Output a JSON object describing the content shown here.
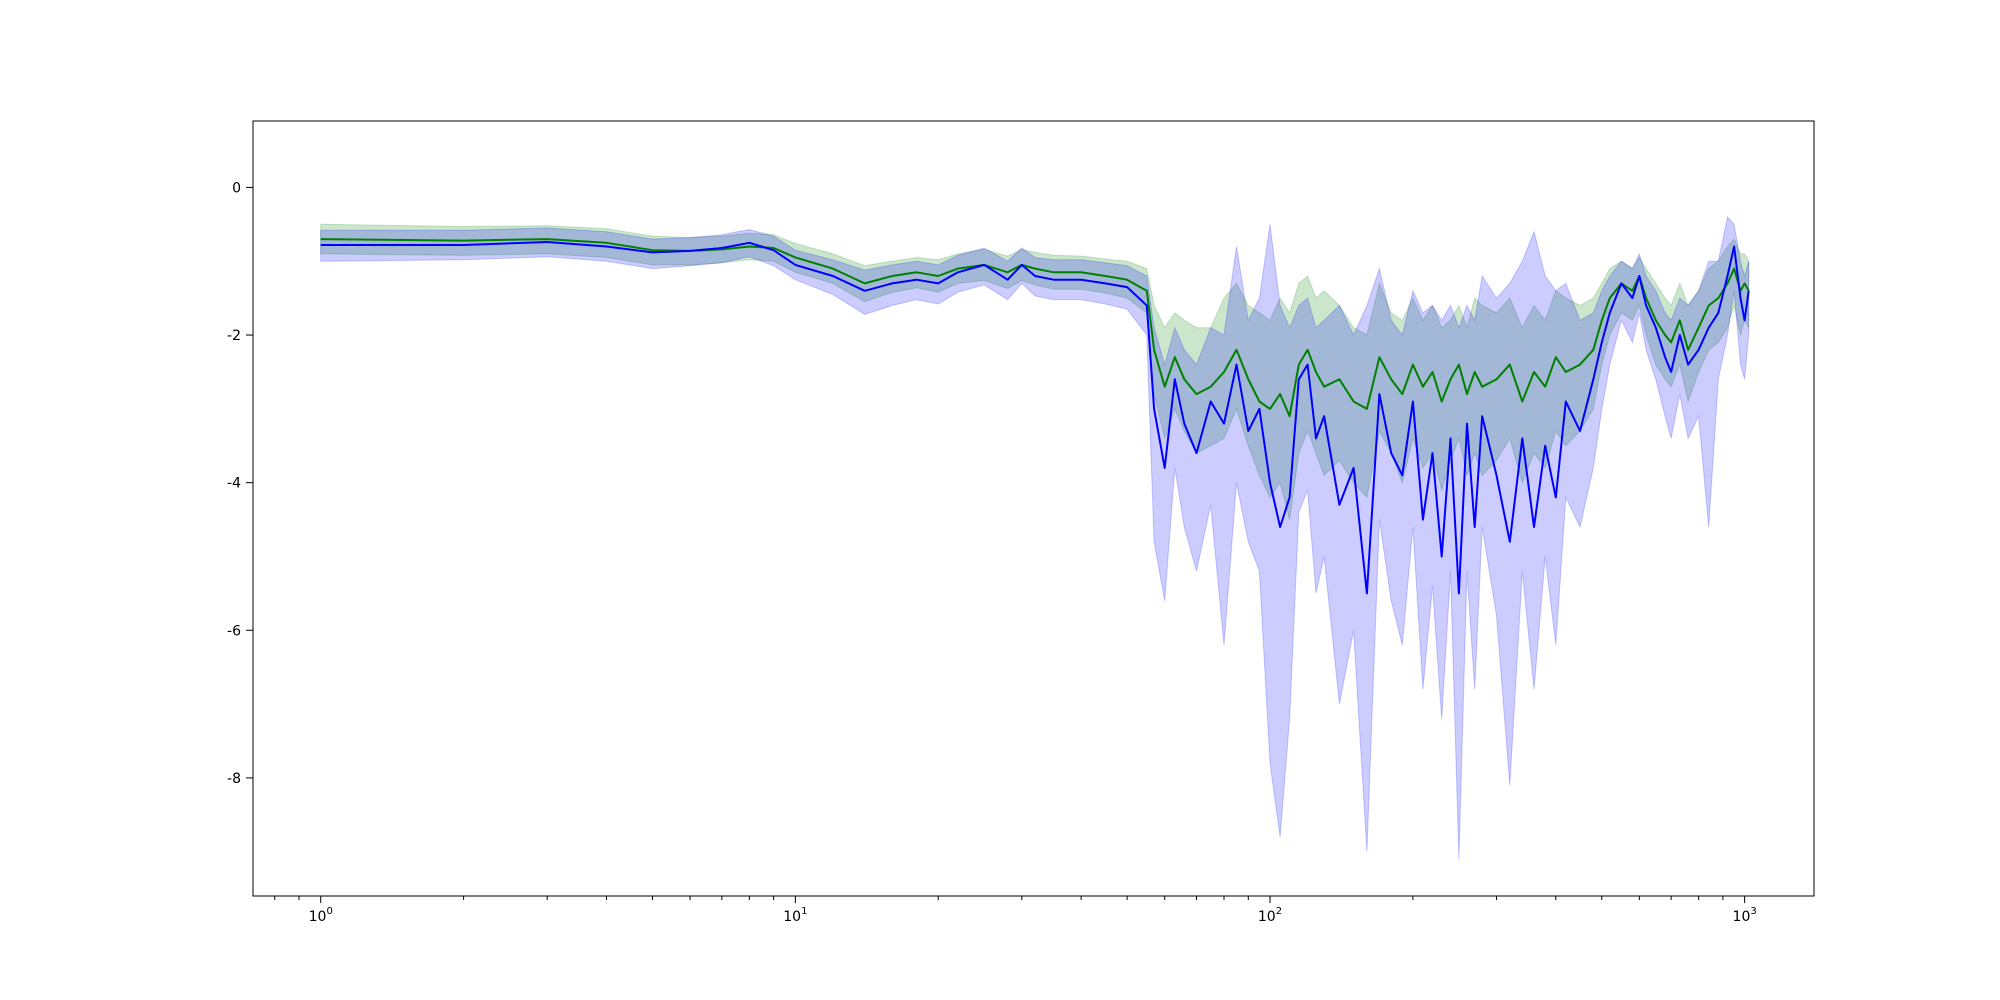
{
  "chart_data": {
    "type": "line",
    "title": "",
    "xlabel": "",
    "ylabel": "",
    "x_scale": "log",
    "xlim": [
      0.72,
      1400
    ],
    "ylim": [
      -9.6,
      0.9
    ],
    "grid": false,
    "legend": "none",
    "x_ticks": [
      {
        "value": 1,
        "base": "10",
        "exp": "0"
      },
      {
        "value": 10,
        "base": "10",
        "exp": "1"
      },
      {
        "value": 100,
        "base": "10",
        "exp": "2"
      },
      {
        "value": 1000,
        "base": "10",
        "exp": "3"
      }
    ],
    "y_ticks": [
      {
        "value": 0,
        "label": "0"
      },
      {
        "value": -2,
        "label": "-2"
      },
      {
        "value": -4,
        "label": "-4"
      },
      {
        "value": -6,
        "label": "-6"
      },
      {
        "value": -8,
        "label": "-8"
      }
    ],
    "series": [
      {
        "color": "#008000",
        "band_color": "#008000",
        "band_opacity": 0.2,
        "x": [
          1,
          2,
          3,
          4,
          5,
          6,
          7,
          8,
          9,
          10,
          12,
          14,
          16,
          18,
          20,
          22,
          25,
          28,
          30,
          32,
          35,
          40,
          45,
          50,
          55,
          57,
          60,
          63,
          66,
          70,
          75,
          80,
          85,
          90,
          95,
          100,
          105,
          110,
          115,
          120,
          125,
          130,
          140,
          150,
          160,
          170,
          180,
          190,
          200,
          210,
          220,
          230,
          240,
          250,
          260,
          270,
          280,
          300,
          320,
          340,
          360,
          380,
          400,
          420,
          450,
          480,
          500,
          520,
          550,
          580,
          600,
          620,
          650,
          680,
          700,
          730,
          760,
          800,
          840,
          880,
          920,
          950,
          980,
          1000,
          1020
        ],
        "y": [
          -0.7,
          -0.72,
          -0.7,
          -0.75,
          -0.85,
          -0.86,
          -0.84,
          -0.8,
          -0.82,
          -0.95,
          -1.1,
          -1.3,
          -1.2,
          -1.15,
          -1.2,
          -1.1,
          -1.05,
          -1.15,
          -1.05,
          -1.1,
          -1.15,
          -1.15,
          -1.2,
          -1.25,
          -1.4,
          -2.2,
          -2.7,
          -2.3,
          -2.6,
          -2.8,
          -2.7,
          -2.5,
          -2.2,
          -2.6,
          -2.9,
          -3.0,
          -2.8,
          -3.1,
          -2.4,
          -2.2,
          -2.5,
          -2.7,
          -2.6,
          -2.9,
          -3.0,
          -2.3,
          -2.6,
          -2.8,
          -2.4,
          -2.7,
          -2.5,
          -2.9,
          -2.6,
          -2.4,
          -2.8,
          -2.5,
          -2.7,
          -2.6,
          -2.4,
          -2.9,
          -2.5,
          -2.7,
          -2.3,
          -2.5,
          -2.4,
          -2.2,
          -1.8,
          -1.5,
          -1.3,
          -1.4,
          -1.2,
          -1.5,
          -1.8,
          -2.0,
          -2.1,
          -1.8,
          -2.2,
          -1.9,
          -1.6,
          -1.5,
          -1.3,
          -1.1,
          -1.4,
          -1.3,
          -1.4
        ],
        "upper": [
          -0.5,
          -0.53,
          -0.52,
          -0.56,
          -0.66,
          -0.68,
          -0.66,
          -0.62,
          -0.64,
          -0.76,
          -0.9,
          -1.06,
          -1.0,
          -0.95,
          -0.98,
          -0.9,
          -0.84,
          -0.93,
          -0.84,
          -0.88,
          -0.92,
          -0.93,
          -0.97,
          -1.0,
          -1.1,
          -1.6,
          -1.9,
          -1.7,
          -1.8,
          -1.9,
          -1.9,
          -1.5,
          -1.3,
          -1.6,
          -1.7,
          -1.8,
          -1.5,
          -1.7,
          -1.3,
          -1.2,
          -1.5,
          -1.4,
          -1.6,
          -1.9,
          -2.0,
          -1.3,
          -1.7,
          -1.8,
          -1.5,
          -1.8,
          -1.6,
          -1.9,
          -1.8,
          -1.6,
          -1.9,
          -1.5,
          -1.6,
          -1.7,
          -1.5,
          -1.9,
          -1.6,
          -1.8,
          -1.4,
          -1.5,
          -1.6,
          -1.5,
          -1.3,
          -1.1,
          -1.0,
          -1.1,
          -0.95,
          -1.1,
          -1.3,
          -1.5,
          -1.6,
          -1.3,
          -1.6,
          -1.4,
          -1.1,
          -1.0,
          -0.8,
          -0.7,
          -0.9,
          -0.9,
          -1.0
        ],
        "lower": [
          -0.9,
          -0.92,
          -0.9,
          -0.95,
          -1.05,
          -1.05,
          -1.02,
          -0.98,
          -1.0,
          -1.15,
          -1.3,
          -1.55,
          -1.42,
          -1.36,
          -1.42,
          -1.3,
          -1.26,
          -1.37,
          -1.26,
          -1.32,
          -1.38,
          -1.38,
          -1.43,
          -1.5,
          -1.7,
          -2.8,
          -3.4,
          -3.0,
          -3.3,
          -3.6,
          -3.5,
          -3.4,
          -3.0,
          -3.5,
          -3.9,
          -4.2,
          -4.0,
          -4.5,
          -3.6,
          -3.3,
          -3.6,
          -3.9,
          -3.7,
          -4.0,
          -4.2,
          -3.3,
          -3.6,
          -4.0,
          -3.4,
          -3.8,
          -3.6,
          -4.1,
          -3.7,
          -3.4,
          -3.9,
          -3.6,
          -3.9,
          -3.7,
          -3.4,
          -4.0,
          -3.6,
          -3.8,
          -3.3,
          -3.5,
          -3.3,
          -3.0,
          -2.4,
          -2.0,
          -1.7,
          -1.8,
          -1.6,
          -2.0,
          -2.4,
          -2.6,
          -2.7,
          -2.4,
          -2.9,
          -2.5,
          -2.2,
          -2.1,
          -1.9,
          -1.6,
          -2.0,
          -1.8,
          -1.9
        ]
      },
      {
        "color": "#0000ff",
        "band_color": "#0000ff",
        "band_opacity": 0.2,
        "x": [
          1,
          2,
          3,
          4,
          5,
          6,
          7,
          8,
          9,
          10,
          12,
          14,
          16,
          18,
          20,
          22,
          25,
          28,
          30,
          32,
          35,
          40,
          45,
          50,
          55,
          57,
          60,
          63,
          66,
          70,
          75,
          80,
          85,
          90,
          95,
          100,
          105,
          110,
          115,
          120,
          125,
          130,
          140,
          150,
          160,
          170,
          180,
          190,
          200,
          210,
          220,
          230,
          240,
          250,
          260,
          270,
          280,
          300,
          320,
          340,
          360,
          380,
          400,
          420,
          450,
          480,
          500,
          520,
          550,
          580,
          600,
          620,
          650,
          680,
          700,
          730,
          760,
          800,
          840,
          880,
          920,
          950,
          980,
          1000,
          1020
        ],
        "y": [
          -0.78,
          -0.78,
          -0.74,
          -0.8,
          -0.88,
          -0.86,
          -0.82,
          -0.75,
          -0.85,
          -1.05,
          -1.2,
          -1.4,
          -1.3,
          -1.25,
          -1.3,
          -1.15,
          -1.05,
          -1.25,
          -1.05,
          -1.2,
          -1.25,
          -1.25,
          -1.3,
          -1.35,
          -1.6,
          -3.0,
          -3.8,
          -2.6,
          -3.2,
          -3.6,
          -2.9,
          -3.2,
          -2.4,
          -3.3,
          -3.0,
          -4.0,
          -4.6,
          -4.2,
          -2.6,
          -2.4,
          -3.4,
          -3.1,
          -4.3,
          -3.8,
          -5.5,
          -2.8,
          -3.6,
          -3.9,
          -2.9,
          -4.5,
          -3.6,
          -5.0,
          -3.4,
          -5.5,
          -3.2,
          -4.6,
          -3.1,
          -3.9,
          -4.8,
          -3.4,
          -4.6,
          -3.5,
          -4.2,
          -2.9,
          -3.3,
          -2.6,
          -2.1,
          -1.7,
          -1.3,
          -1.5,
          -1.2,
          -1.6,
          -1.9,
          -2.3,
          -2.5,
          -2.0,
          -2.4,
          -2.2,
          -1.9,
          -1.7,
          -1.2,
          -0.8,
          -1.5,
          -1.8,
          -1.4
        ],
        "upper": [
          -0.58,
          -0.58,
          -0.55,
          -0.6,
          -0.7,
          -0.68,
          -0.64,
          -0.57,
          -0.66,
          -0.85,
          -0.98,
          -1.12,
          -1.05,
          -1.0,
          -1.05,
          -0.92,
          -0.82,
          -1.0,
          -0.82,
          -0.95,
          -0.98,
          -0.98,
          -1.02,
          -1.06,
          -1.2,
          -1.9,
          -2.4,
          -1.9,
          -2.2,
          -2.4,
          -1.9,
          -2.0,
          -0.8,
          -1.8,
          -1.5,
          -0.5,
          -1.6,
          -1.9,
          -1.6,
          -1.5,
          -1.9,
          -1.8,
          -1.6,
          -2.0,
          -1.6,
          -1.1,
          -1.8,
          -2.0,
          -1.4,
          -1.7,
          -1.6,
          -1.8,
          -1.6,
          -1.9,
          -1.6,
          -1.8,
          -1.2,
          -1.5,
          -1.3,
          -1.0,
          -0.6,
          -1.2,
          -1.4,
          -1.3,
          -1.8,
          -1.7,
          -1.4,
          -1.2,
          -1.0,
          -1.1,
          -0.9,
          -1.2,
          -1.4,
          -1.7,
          -1.8,
          -1.5,
          -1.6,
          -1.4,
          -1.0,
          -1.0,
          -0.4,
          -0.5,
          -1.0,
          -1.2,
          -1.0
        ],
        "lower": [
          -1.0,
          -0.98,
          -0.94,
          -1.0,
          -1.1,
          -1.06,
          -1.02,
          -0.94,
          -1.06,
          -1.25,
          -1.45,
          -1.72,
          -1.6,
          -1.52,
          -1.58,
          -1.42,
          -1.32,
          -1.52,
          -1.3,
          -1.47,
          -1.52,
          -1.52,
          -1.58,
          -1.65,
          -2.0,
          -4.8,
          -5.6,
          -3.8,
          -4.6,
          -5.2,
          -4.3,
          -6.2,
          -4.0,
          -4.8,
          -5.2,
          -7.8,
          -8.8,
          -7.2,
          -4.4,
          -4.1,
          -5.5,
          -5.0,
          -7.0,
          -6.0,
          -9.0,
          -4.5,
          -5.6,
          -6.2,
          -4.6,
          -6.8,
          -5.4,
          -7.2,
          -5.2,
          -9.1,
          -5.2,
          -6.8,
          -4.6,
          -5.8,
          -8.1,
          -5.2,
          -6.8,
          -5.0,
          -6.2,
          -4.2,
          -4.6,
          -3.8,
          -3.0,
          -2.4,
          -1.8,
          -2.1,
          -1.7,
          -2.2,
          -2.6,
          -3.1,
          -3.4,
          -2.8,
          -3.4,
          -3.1,
          -4.6,
          -2.6,
          -2.0,
          -1.4,
          -2.4,
          -2.6,
          -2.0
        ]
      }
    ]
  }
}
